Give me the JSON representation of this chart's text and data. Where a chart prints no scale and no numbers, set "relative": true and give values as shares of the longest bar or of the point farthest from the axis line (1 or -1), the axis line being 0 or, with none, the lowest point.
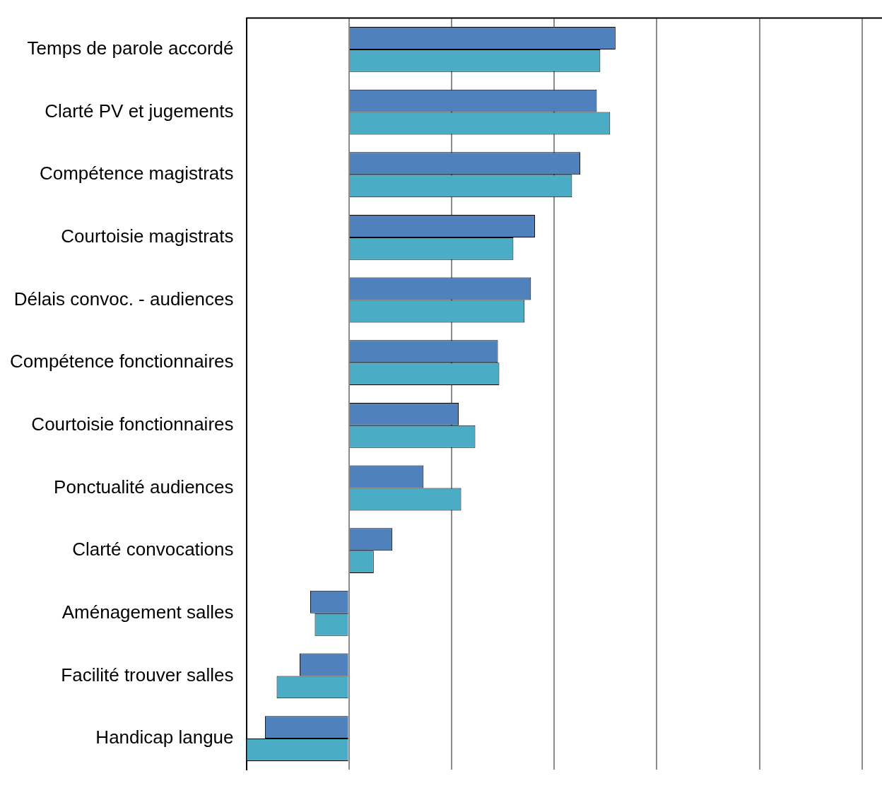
{
  "chart_data": {
    "type": "bar",
    "orientation": "horizontal",
    "relative": true,
    "grid": "x",
    "legend": false,
    "categories": [
      "Temps de parole accordé",
      "Clarté PV et jugements",
      "Compétence magistrats",
      "Courtoisie magistrats",
      "Délais convoc. - audiences",
      "Compétence fonctionnaires",
      "Courtoisie fonctionnaires",
      "Ponctualité audiences",
      "Clarté convocations",
      "Aménagement salles",
      "Facilité trouver salles",
      "Handicap langue"
    ],
    "series": [
      {
        "color": "#4f81bd",
        "values": [
          1,
          0.93,
          0.868,
          0.698,
          0.683,
          0.559,
          0.412,
          0.28,
          0.163,
          -0.145,
          -0.185,
          -0.315
        ]
      },
      {
        "color": "#4bacc6",
        "values": [
          0.943,
          0.98,
          0.837,
          0.617,
          0.659,
          0.564,
          0.474,
          0.421,
          0.093,
          -0.128,
          -0.271,
          -0.385
        ]
      }
    ]
  }
}
